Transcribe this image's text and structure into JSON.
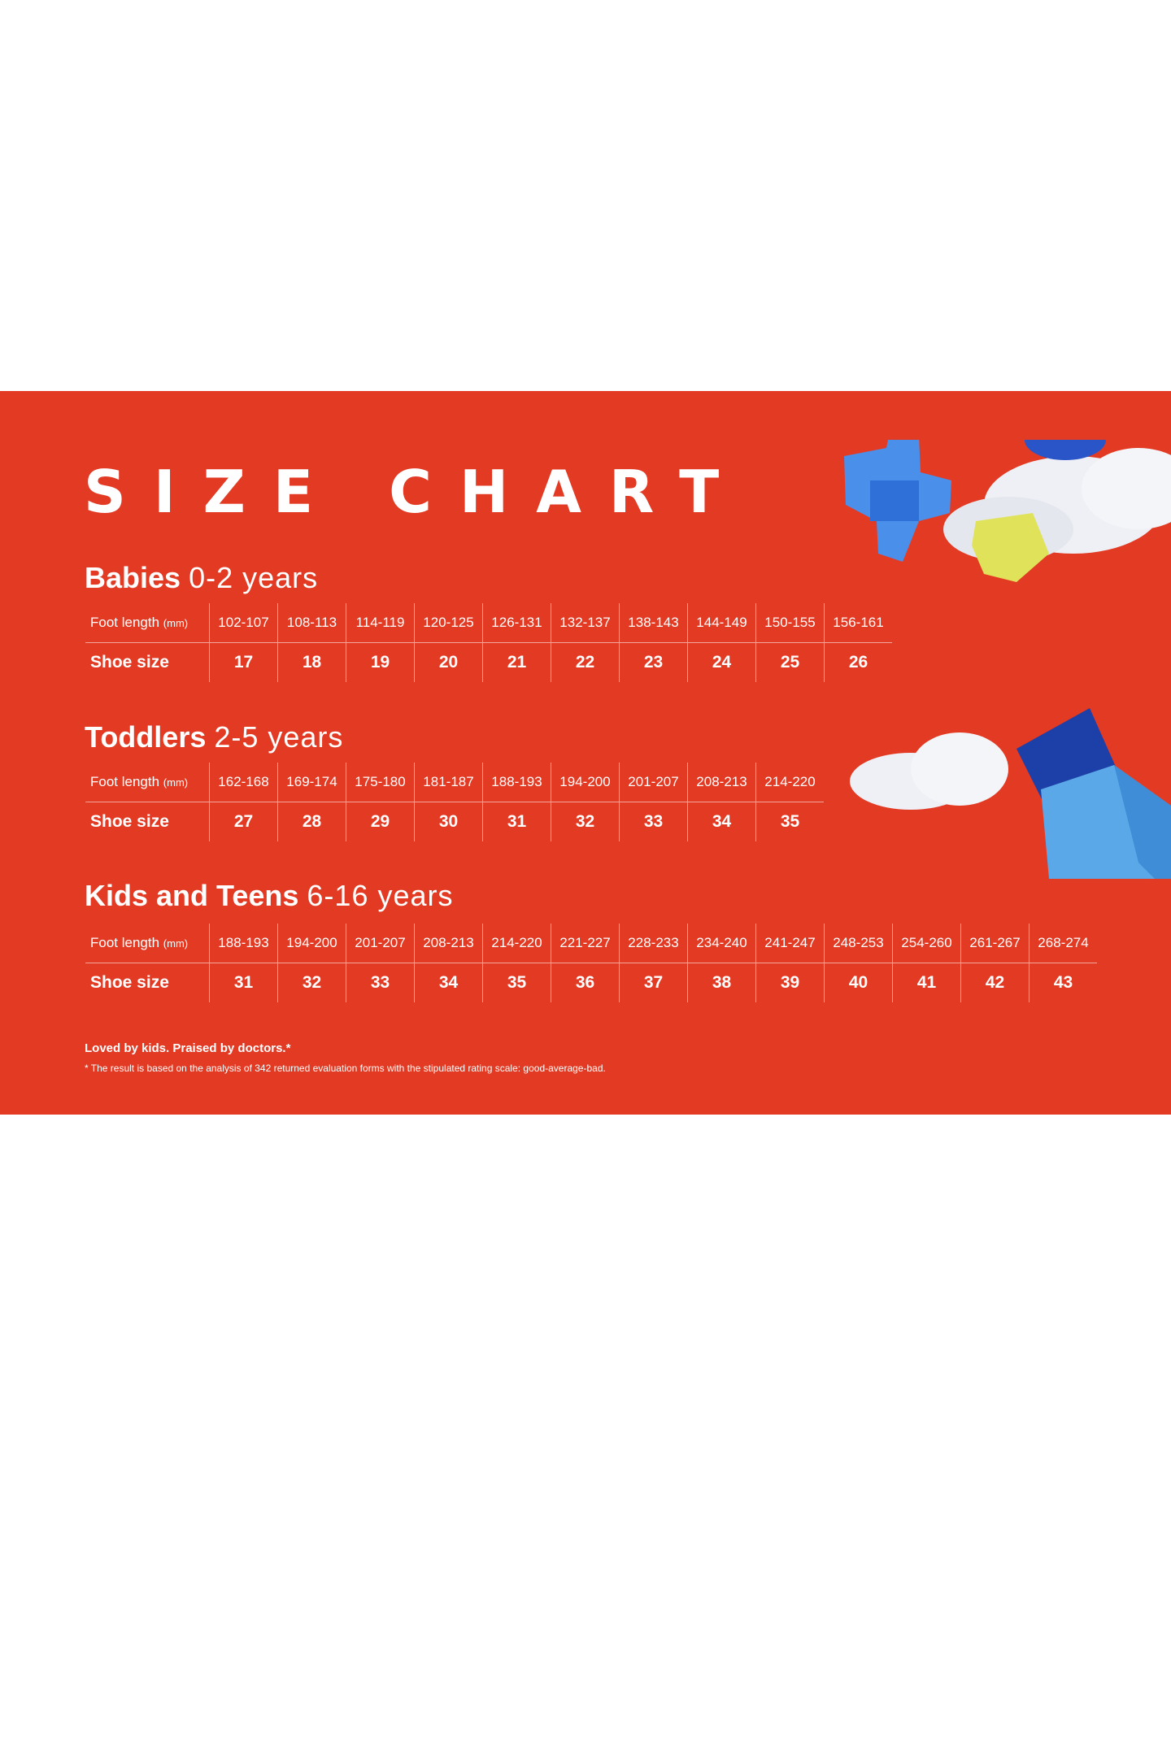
{
  "title": "SIZE CHART",
  "row_labels": {
    "foot_length": "Foot length",
    "foot_length_unit": "(mm)",
    "shoe_size": "Shoe size"
  },
  "sections": [
    {
      "name": "Babies",
      "age": "0-2 years",
      "foot_length": [
        "102-107",
        "108-113",
        "114-119",
        "120-125",
        "126-131",
        "132-137",
        "138-143",
        "144-149",
        "150-155",
        "156-161"
      ],
      "shoe_size": [
        "17",
        "18",
        "19",
        "20",
        "21",
        "22",
        "23",
        "24",
        "25",
        "26"
      ]
    },
    {
      "name": "Toddlers",
      "age": "2-5 years",
      "foot_length": [
        "162-168",
        "169-174",
        "175-180",
        "181-187",
        "188-193",
        "194-200",
        "201-207",
        "208-213",
        "214-220"
      ],
      "shoe_size": [
        "27",
        "28",
        "29",
        "30",
        "31",
        "32",
        "33",
        "34",
        "35"
      ]
    },
    {
      "name": "Kids and Teens",
      "age": "6-16 years",
      "foot_length": [
        "188-193",
        "194-200",
        "201-207",
        "208-213",
        "214-220",
        "221-227",
        "228-233",
        "234-240",
        "241-247",
        "248-253",
        "254-260",
        "261-267",
        "268-274"
      ],
      "shoe_size": [
        "31",
        "32",
        "33",
        "34",
        "35",
        "36",
        "37",
        "38",
        "39",
        "40",
        "41",
        "42",
        "43"
      ]
    }
  ],
  "footer": {
    "tagline": "Loved by kids. Praised by doctors.*",
    "note": "* The result is based on the analysis of 342 returned evaluation forms with the stipulated rating scale: good-average-bad."
  },
  "colors": {
    "background": "#e33a24",
    "text": "#ffffff"
  }
}
